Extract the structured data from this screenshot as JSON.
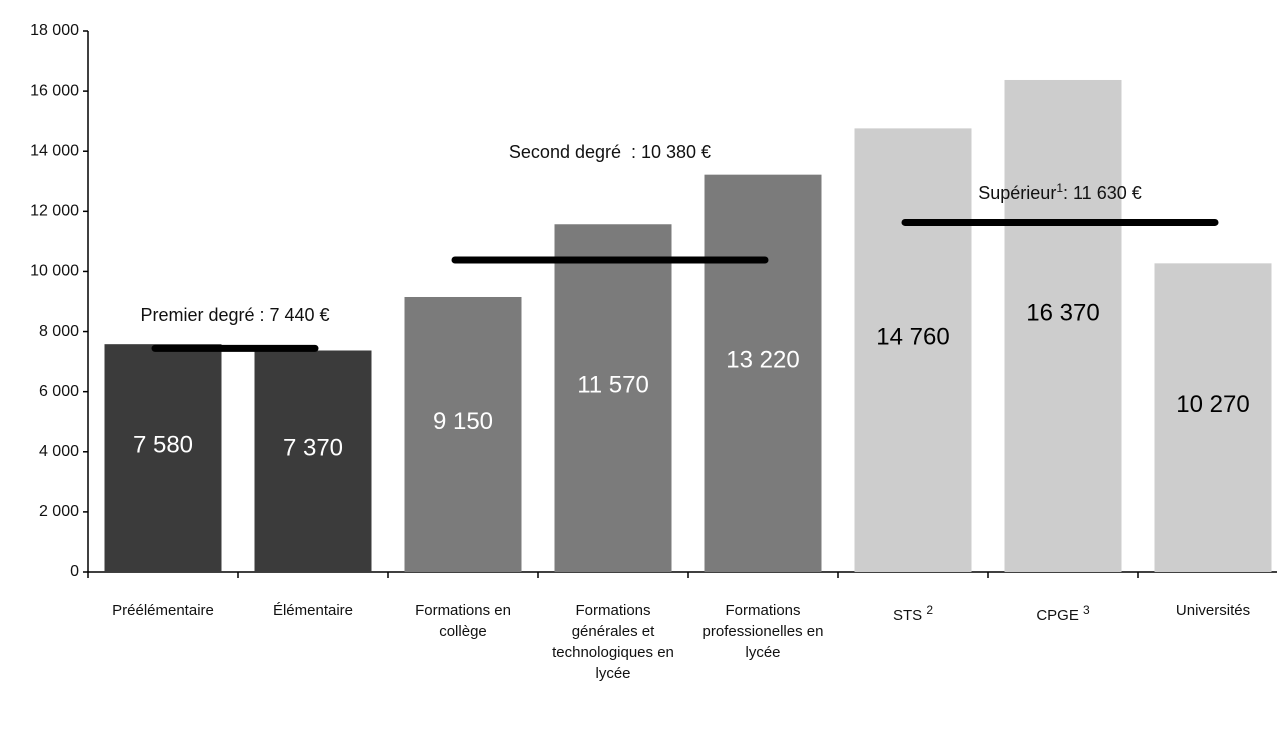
{
  "chart_data": {
    "type": "bar",
    "categories": [
      {
        "name": "Préélémentaire"
      },
      {
        "name": "Élémentaire"
      },
      {
        "name": "Formations en collège"
      },
      {
        "name": "Formations générales et technologiques en lycée"
      },
      {
        "name": "Formations professionelles en lycée"
      },
      {
        "name": "STS",
        "sup": "2"
      },
      {
        "name": "CPGE",
        "sup": "3"
      },
      {
        "name": "Universités"
      }
    ],
    "values": [
      7580,
      7370,
      9150,
      11570,
      13220,
      14760,
      16370,
      10270
    ],
    "value_labels": [
      "7 580",
      "7 370",
      "9 150",
      "11 570",
      "13 220",
      "14 760",
      "16 370",
      "10 270"
    ],
    "colors": [
      "#3b3b3b",
      "#3b3b3b",
      "#7b7b7b",
      "#7b7b7b",
      "#7b7b7b",
      "#cdcdcd",
      "#cdcdcd",
      "#cdcdcd"
    ],
    "value_label_colors": [
      "#ffffff",
      "#ffffff",
      "#ffffff",
      "#ffffff",
      "#ffffff",
      "#000000",
      "#000000",
      "#000000"
    ],
    "groups": [
      {
        "label": "Premier degré : 7 440 €",
        "value": 7440,
        "color": "#3b3b3b"
      },
      {
        "label": "Second degré  : 10 380 €",
        "value": 10380,
        "color": "#7b7b7b"
      },
      {
        "label": "Supérieur",
        "sup": "1",
        "label_end": ": 11 630 €",
        "value": 11630,
        "color": "#cdcdcd"
      }
    ],
    "ylim": [
      0,
      18000
    ],
    "yticks": [
      0,
      {
        "value": 2000,
        "label": "2 000"
      },
      {
        "value": 4000,
        "label": "4 000"
      },
      {
        "value": 6000,
        "label": "6 000"
      },
      {
        "value": 8000,
        "label": "8 000"
      },
      {
        "value": 10000,
        "label": "10 000"
      },
      {
        "value": 12000,
        "label": "12 000"
      },
      {
        "value": 14000,
        "label": "14 000"
      },
      {
        "value": 16000,
        "label": "16 000"
      },
      {
        "value": 18000,
        "label": "18 000"
      }
    ],
    "grid": false
  }
}
